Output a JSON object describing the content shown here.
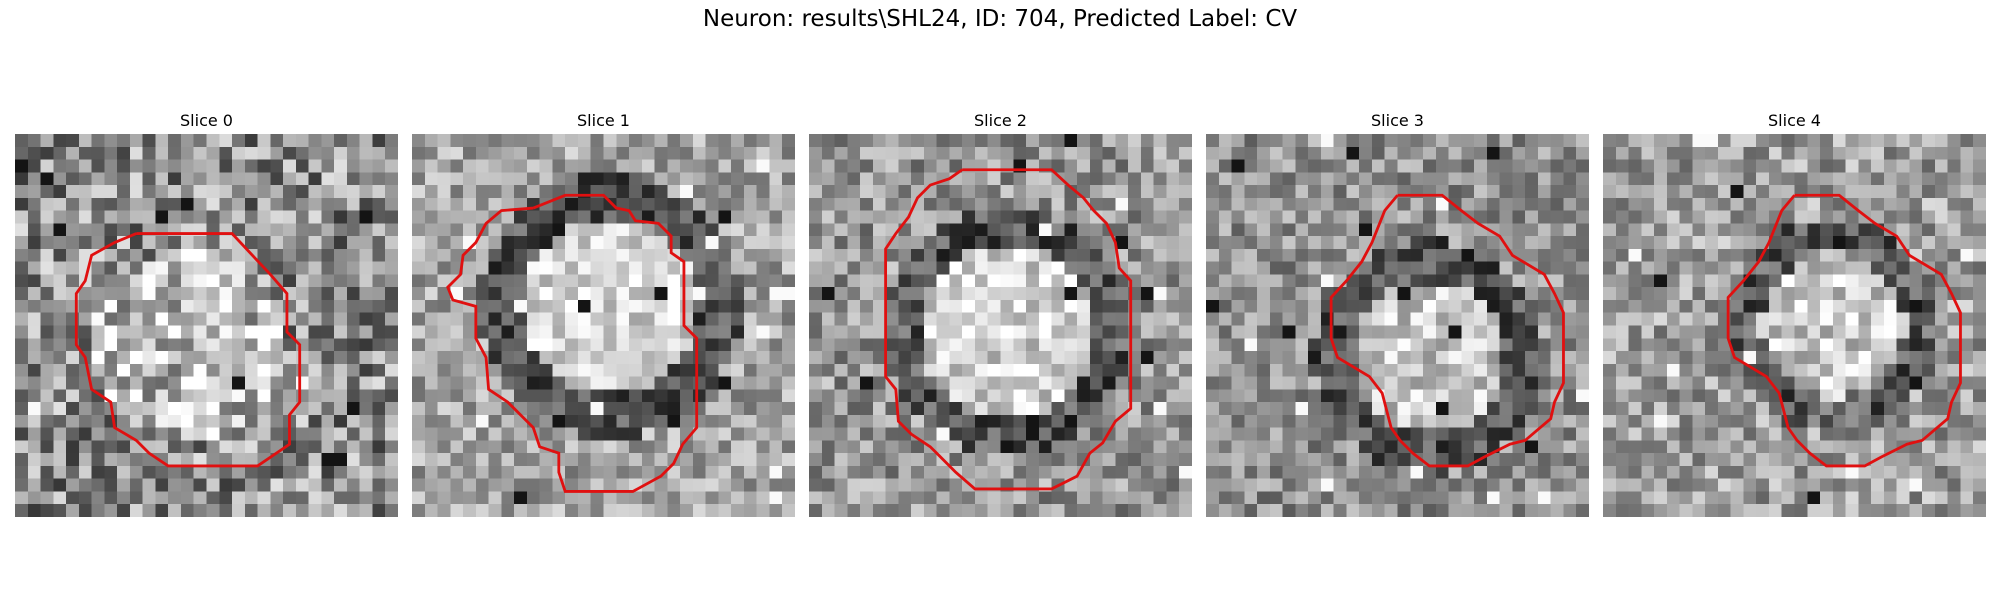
{
  "title": "Neuron: results\\SHL24, ID: 704, Predicted Label: CV",
  "slices": [
    {
      "label": "Slice 0"
    },
    {
      "label": "Slice 1"
    },
    {
      "label": "Slice 2"
    },
    {
      "label": "Slice 3"
    },
    {
      "label": "Slice 4"
    }
  ],
  "colors": {
    "contour": "#e01010",
    "background": "#ffffff"
  }
}
